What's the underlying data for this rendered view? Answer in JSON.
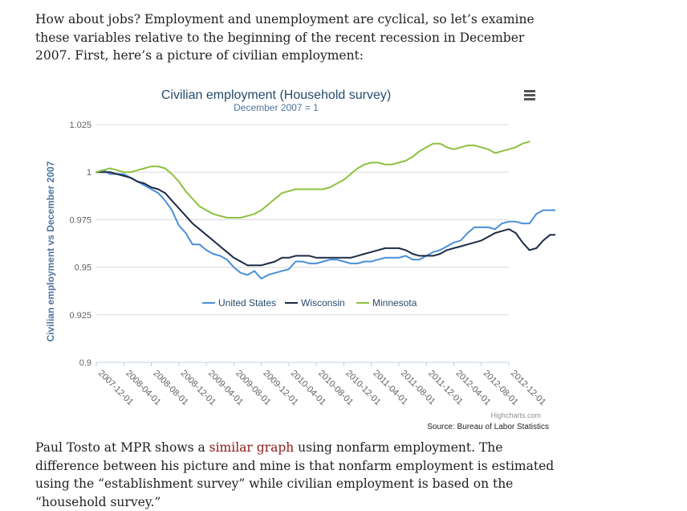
{
  "intro": {
    "text": "How about jobs? Employment and unemployment are cyclical, so let’s examine these variables relative to the beginning of the recent recession in December 2007. First, here’s a picture of civilian employment:"
  },
  "outro": {
    "before_link": "Paul Tosto at MPR shows a ",
    "link_text": "similar graph",
    "after_link": " using nonfarm employment. The difference between his picture and mine is that nonfarm employment is estimated using the “establishment survey” while civilian employment is based on the “household survey.”"
  },
  "menu": {
    "icon": "hamburger-menu-icon"
  },
  "chart_data": {
    "type": "line",
    "title": "Civilian employment (Household survey)",
    "subtitle": "December 2007 = 1",
    "ylabel": "Civilian employment vs December 2007",
    "xlabel": "",
    "ylim": [
      0.9,
      1.025
    ],
    "yticks": [
      "0.9",
      "0.925",
      "0.95",
      "0.975",
      "1",
      "1.025"
    ],
    "xticks": [
      "2007-12-01",
      "2008-04-01",
      "2008-08-01",
      "2008-12-01",
      "2009-04-01",
      "2009-08-01",
      "2009-12-01",
      "2010-04-01",
      "2010-08-01",
      "2010-12-01",
      "2011-04-01",
      "2011-08-01",
      "2011-12-01",
      "2012-04-01",
      "2012-08-01",
      "2012-12-01"
    ],
    "grid": true,
    "legend_position": "inside-lower-center",
    "credits": "Highcharts.com",
    "source": "Source: Bureau of Labor Statistics",
    "series": [
      {
        "name": "United States",
        "color": "#4a8fd6",
        "values": [
          1.0,
          1.001,
          0.999,
          0.999,
          0.999,
          0.997,
          0.995,
          0.993,
          0.991,
          0.989,
          0.985,
          0.98,
          0.972,
          0.968,
          0.962,
          0.962,
          0.959,
          0.957,
          0.956,
          0.954,
          0.95,
          0.947,
          0.946,
          0.948,
          0.944,
          0.946,
          0.947,
          0.948,
          0.949,
          0.953,
          0.953,
          0.952,
          0.952,
          0.953,
          0.954,
          0.954,
          0.953,
          0.952,
          0.952,
          0.953,
          0.953,
          0.954,
          0.955,
          0.955,
          0.955,
          0.956,
          0.954,
          0.954,
          0.956,
          0.958,
          0.959,
          0.961,
          0.963,
          0.964,
          0.968,
          0.971,
          0.971,
          0.971,
          0.97,
          0.973,
          0.974,
          0.974,
          0.973,
          0.973,
          0.978,
          0.98,
          0.98,
          0.98
        ]
      },
      {
        "name": "Wisconsin",
        "color": "#1c2b45",
        "values": [
          1.0,
          1.0,
          1.0,
          0.999,
          0.998,
          0.997,
          0.995,
          0.994,
          0.992,
          0.991,
          0.989,
          0.985,
          0.981,
          0.977,
          0.973,
          0.97,
          0.967,
          0.964,
          0.961,
          0.958,
          0.955,
          0.953,
          0.951,
          0.951,
          0.951,
          0.952,
          0.953,
          0.955,
          0.955,
          0.956,
          0.956,
          0.956,
          0.955,
          0.955,
          0.955,
          0.955,
          0.955,
          0.955,
          0.956,
          0.957,
          0.958,
          0.959,
          0.96,
          0.96,
          0.96,
          0.959,
          0.957,
          0.956,
          0.956,
          0.956,
          0.957,
          0.959,
          0.96,
          0.961,
          0.962,
          0.963,
          0.964,
          0.966,
          0.968,
          0.969,
          0.97,
          0.968,
          0.963,
          0.959,
          0.96,
          0.964,
          0.967,
          0.967
        ]
      },
      {
        "name": "Minnesota",
        "color": "#8dc13f",
        "values": [
          1.0,
          1.001,
          1.002,
          1.001,
          1.0,
          1.0,
          1.001,
          1.002,
          1.003,
          1.003,
          1.002,
          0.999,
          0.995,
          0.99,
          0.986,
          0.982,
          0.98,
          0.978,
          0.977,
          0.976,
          0.976,
          0.976,
          0.977,
          0.978,
          0.98,
          0.983,
          0.986,
          0.989,
          0.99,
          0.991,
          0.991,
          0.991,
          0.991,
          0.991,
          0.992,
          0.994,
          0.996,
          0.999,
          1.002,
          1.004,
          1.005,
          1.005,
          1.004,
          1.004,
          1.005,
          1.006,
          1.008,
          1.011,
          1.013,
          1.015,
          1.015,
          1.013,
          1.012,
          1.013,
          1.014,
          1.014,
          1.013,
          1.012,
          1.01,
          1.011,
          1.012,
          1.013,
          1.015,
          1.016
        ]
      }
    ]
  }
}
